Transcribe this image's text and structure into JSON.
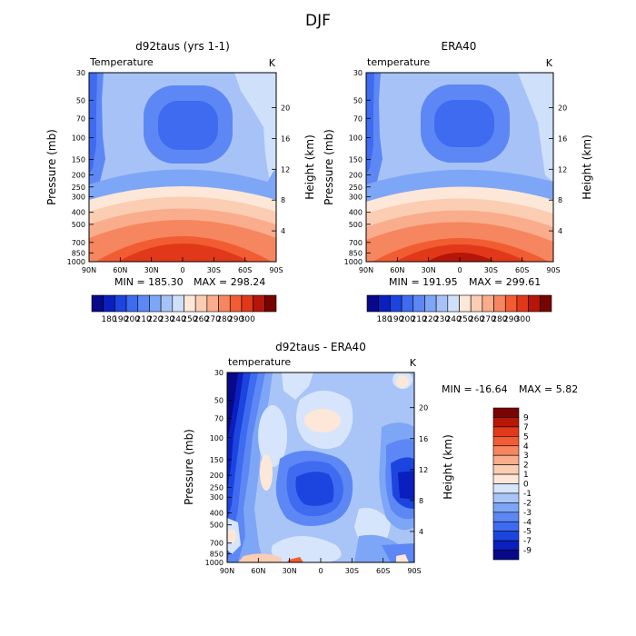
{
  "figure": {
    "title": "DJF"
  },
  "chart_data": [
    {
      "id": "model",
      "type": "heatmap",
      "title": "d92taus (yrs 1-1)",
      "variable_label": "Temperature",
      "units": "K",
      "xlabel": "",
      "ylabel": "Pressure (mb)",
      "y2label": "Height (km)",
      "x_ticks": [
        "90N",
        "60N",
        "30N",
        "0",
        "30S",
        "60S",
        "90S"
      ],
      "y_ticks": [
        "30",
        "50",
        "70",
        "100",
        "150",
        "200",
        "250",
        "300",
        "400",
        "500",
        "700",
        "850",
        "1000"
      ],
      "y2_ticks": [
        "4",
        "8",
        "12",
        "16",
        "20"
      ],
      "xlim": [
        90,
        -90
      ],
      "ylim": [
        1000,
        30
      ],
      "y_scale": "log",
      "min_text": "MIN = 185.30",
      "max_text": "MAX = 298.24",
      "min": 185.3,
      "max": 298.24
    },
    {
      "id": "era",
      "type": "heatmap",
      "title": "ERA40",
      "variable_label": "temperature",
      "units": "K",
      "xlabel": "",
      "ylabel": "Pressure (mb)",
      "y2label": "Height (km)",
      "x_ticks": [
        "90N",
        "60N",
        "30N",
        "0",
        "30S",
        "60S",
        "90S"
      ],
      "y_ticks": [
        "30",
        "50",
        "70",
        "100",
        "150",
        "200",
        "250",
        "300",
        "400",
        "500",
        "700",
        "850",
        "1000"
      ],
      "y2_ticks": [
        "4",
        "8",
        "12",
        "16",
        "20"
      ],
      "xlim": [
        90,
        -90
      ],
      "ylim": [
        1000,
        30
      ],
      "y_scale": "log",
      "min_text": "MIN = 191.95",
      "max_text": "MAX = 299.61",
      "min": 191.95,
      "max": 299.61
    },
    {
      "id": "diff",
      "type": "heatmap",
      "title": "d92taus - ERA40",
      "variable_label": "temperature",
      "units": "K",
      "xlabel": "",
      "ylabel": "Pressure (mb)",
      "y2label": "Height (km)",
      "x_ticks": [
        "90N",
        "60N",
        "30N",
        "0",
        "30S",
        "60S",
        "90S"
      ],
      "y_ticks": [
        "30",
        "50",
        "70",
        "100",
        "150",
        "200",
        "250",
        "300",
        "400",
        "500",
        "700",
        "850",
        "1000"
      ],
      "y2_ticks": [
        "4",
        "8",
        "12",
        "16",
        "20"
      ],
      "xlim": [
        90,
        -90
      ],
      "ylim": [
        1000,
        30
      ],
      "y_scale": "log",
      "min_text": "MIN = -16.64",
      "max_text": "MAX =   5.82",
      "min": -16.64,
      "max": 5.82
    }
  ],
  "colorbar_abs": {
    "labels": [
      "180",
      "190",
      "200",
      "210",
      "220",
      "230",
      "240",
      "250",
      "260",
      "270",
      "280",
      "290",
      "300"
    ],
    "colors": [
      "#08088a",
      "#0a1fbd",
      "#1c45e0",
      "#3f6bf0",
      "#5d87f4",
      "#7ea6f6",
      "#a6c2f7",
      "#cfe0fb",
      "#fde7d8",
      "#fbcdb3",
      "#f9ad8c",
      "#f6865f",
      "#f25c32",
      "#e2381a",
      "#b51609",
      "#760400"
    ]
  },
  "colorbar_diff": {
    "labels": [
      "9",
      "7",
      "5",
      "4",
      "3",
      "2",
      "1",
      "0",
      "-1",
      "-2",
      "-3",
      "-4",
      "-5",
      "-7",
      "-9"
    ],
    "colors": [
      "#7a0303",
      "#b81708",
      "#e2391a",
      "#f25c32",
      "#f6865f",
      "#f9ad8c",
      "#fbcdb3",
      "#fde7d8",
      "#d6e5fb",
      "#a9c4f7",
      "#7ea6f6",
      "#5d87f4",
      "#3f6bf0",
      "#1c45e0",
      "#0a1fbd",
      "#08088a"
    ]
  }
}
